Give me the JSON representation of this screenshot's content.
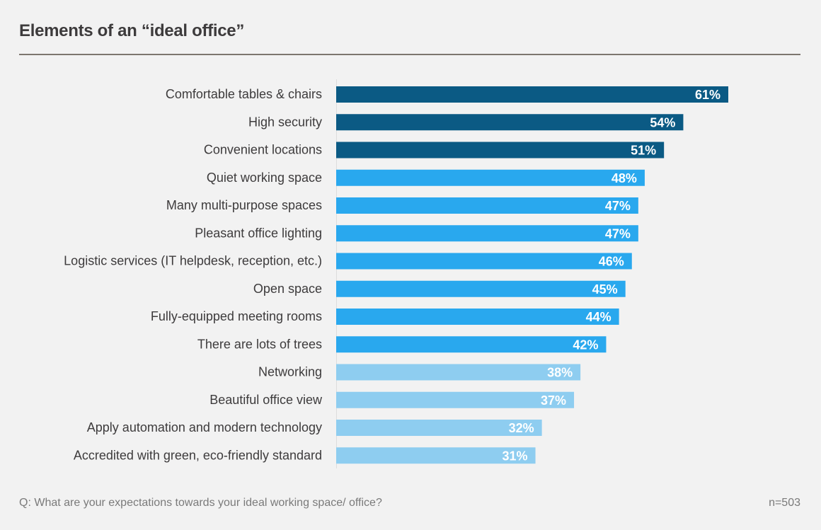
{
  "chart_data": {
    "type": "bar",
    "orientation": "horizontal",
    "title": "Elements of an “ideal office”",
    "categories": [
      "Comfortable tables & chairs",
      "High security",
      "Convenient locations",
      "Quiet working space",
      "Many multi-purpose spaces",
      "Pleasant office lighting",
      "Logistic services (IT helpdesk, reception, etc.)",
      "Open space",
      "Fully-equipped meeting rooms",
      "There are lots of trees",
      "Networking",
      "Beautiful office view",
      "Apply automation and modern technology",
      "Accredited with green, eco-friendly standard"
    ],
    "values": [
      61,
      54,
      51,
      48,
      47,
      47,
      46,
      45,
      44,
      42,
      38,
      37,
      32,
      31
    ],
    "value_labels": [
      "61%",
      "54%",
      "51%",
      "48%",
      "47%",
      "47%",
      "46%",
      "45%",
      "44%",
      "42%",
      "38%",
      "37%",
      "32%",
      "31%"
    ],
    "tiers": [
      0,
      0,
      0,
      1,
      1,
      1,
      1,
      1,
      1,
      1,
      2,
      2,
      2,
      2
    ],
    "tier_colors": [
      "#0b5a84",
      "#29a8ee",
      "#8ecdf0"
    ],
    "xlim": [
      0,
      61
    ],
    "xlabel": "",
    "ylabel": "",
    "grid": false,
    "legend": "none"
  },
  "footer": {
    "question": "Q: What are your expectations towards your ideal working space/ office?",
    "sample": "n=503"
  }
}
